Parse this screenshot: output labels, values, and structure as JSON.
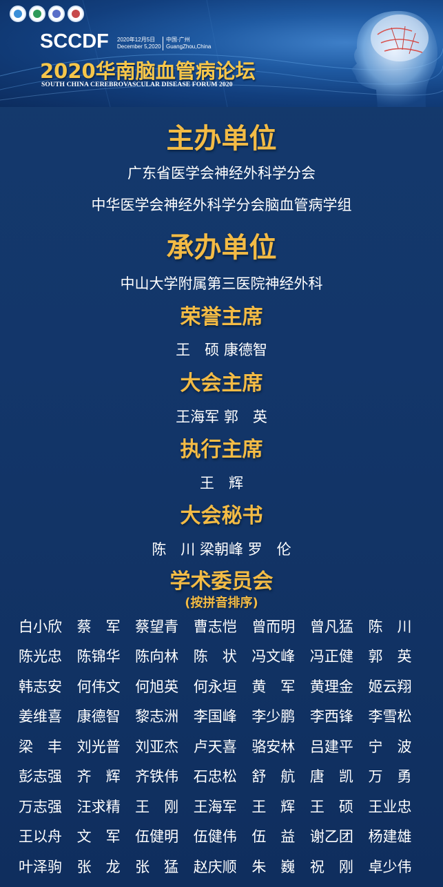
{
  "banner": {
    "logos": [
      "logo-1",
      "logo-2",
      "logo-3",
      "logo-4"
    ],
    "brand": "SCCDF",
    "date_cn": "2020年12月5日",
    "date_en": "December 5,2020",
    "loc_cn": "中国·广州",
    "loc_en": "GuangZhou,China",
    "title": "2020华南脑血管病论坛",
    "subtitle_en": "SOUTH CHINA CEREBROVASCULAR DISEASE FORUM 2020"
  },
  "host": {
    "title": "主办单位",
    "lines": [
      "广东省医学会神经外科学分会",
      "中华医学会神经外科学分会脑血管病学组"
    ]
  },
  "organizer": {
    "title": "承办单位",
    "lines": [
      "中山大学附属第三医院神经外科"
    ]
  },
  "honorary_chair": {
    "title": "荣誉主席",
    "names": "王　硕 康德智"
  },
  "congress_chair": {
    "title": "大会主席",
    "names": "王海军 郭　英"
  },
  "executive_chair": {
    "title": "执行主席",
    "names": "王　辉"
  },
  "secretary": {
    "title": "大会秘书",
    "names": "陈　川 梁朝峰 罗　伦"
  },
  "committee": {
    "title": "学术委员会",
    "note": "(按拼音排序)",
    "rows": [
      [
        "白小欣",
        "蔡　军",
        "蔡望青",
        "曹志恺",
        "曾而明",
        "曾凡猛",
        "陈　川"
      ],
      [
        "陈光忠",
        "陈锦华",
        "陈向林",
        "陈　状",
        "冯文峰",
        "冯正健",
        "郭　英"
      ],
      [
        "韩志安",
        "何伟文",
        "何旭英",
        "何永垣",
        "黄　军",
        "黄理金",
        "姬云翔"
      ],
      [
        "姜维喜",
        "康德智",
        "黎志洲",
        "李国峰",
        "李少鹏",
        "李西锋",
        "李雪松"
      ],
      [
        "梁　丰",
        "刘光普",
        "刘亚杰",
        "卢天喜",
        "骆安林",
        "吕建平",
        "宁　波"
      ],
      [
        "彭志强",
        "齐　辉",
        "齐铁伟",
        "石忠松",
        "舒　航",
        "唐　凯",
        "万　勇"
      ],
      [
        "万志强",
        "汪求精",
        "王　刚",
        "王海军",
        "王　辉",
        "王　硕",
        "王业忠"
      ],
      [
        "王以舟",
        "文　军",
        "伍健明",
        "伍健伟",
        "伍　益",
        "谢乙团",
        "杨建雄"
      ],
      [
        "叶泽驹",
        "张　龙",
        "张　猛",
        "赵庆顺",
        "朱　巍",
        "祝　刚",
        "卓少伟"
      ]
    ]
  },
  "colors": {
    "background": "#14386a",
    "accent": "#f3bb45",
    "text": "#ffffff"
  }
}
